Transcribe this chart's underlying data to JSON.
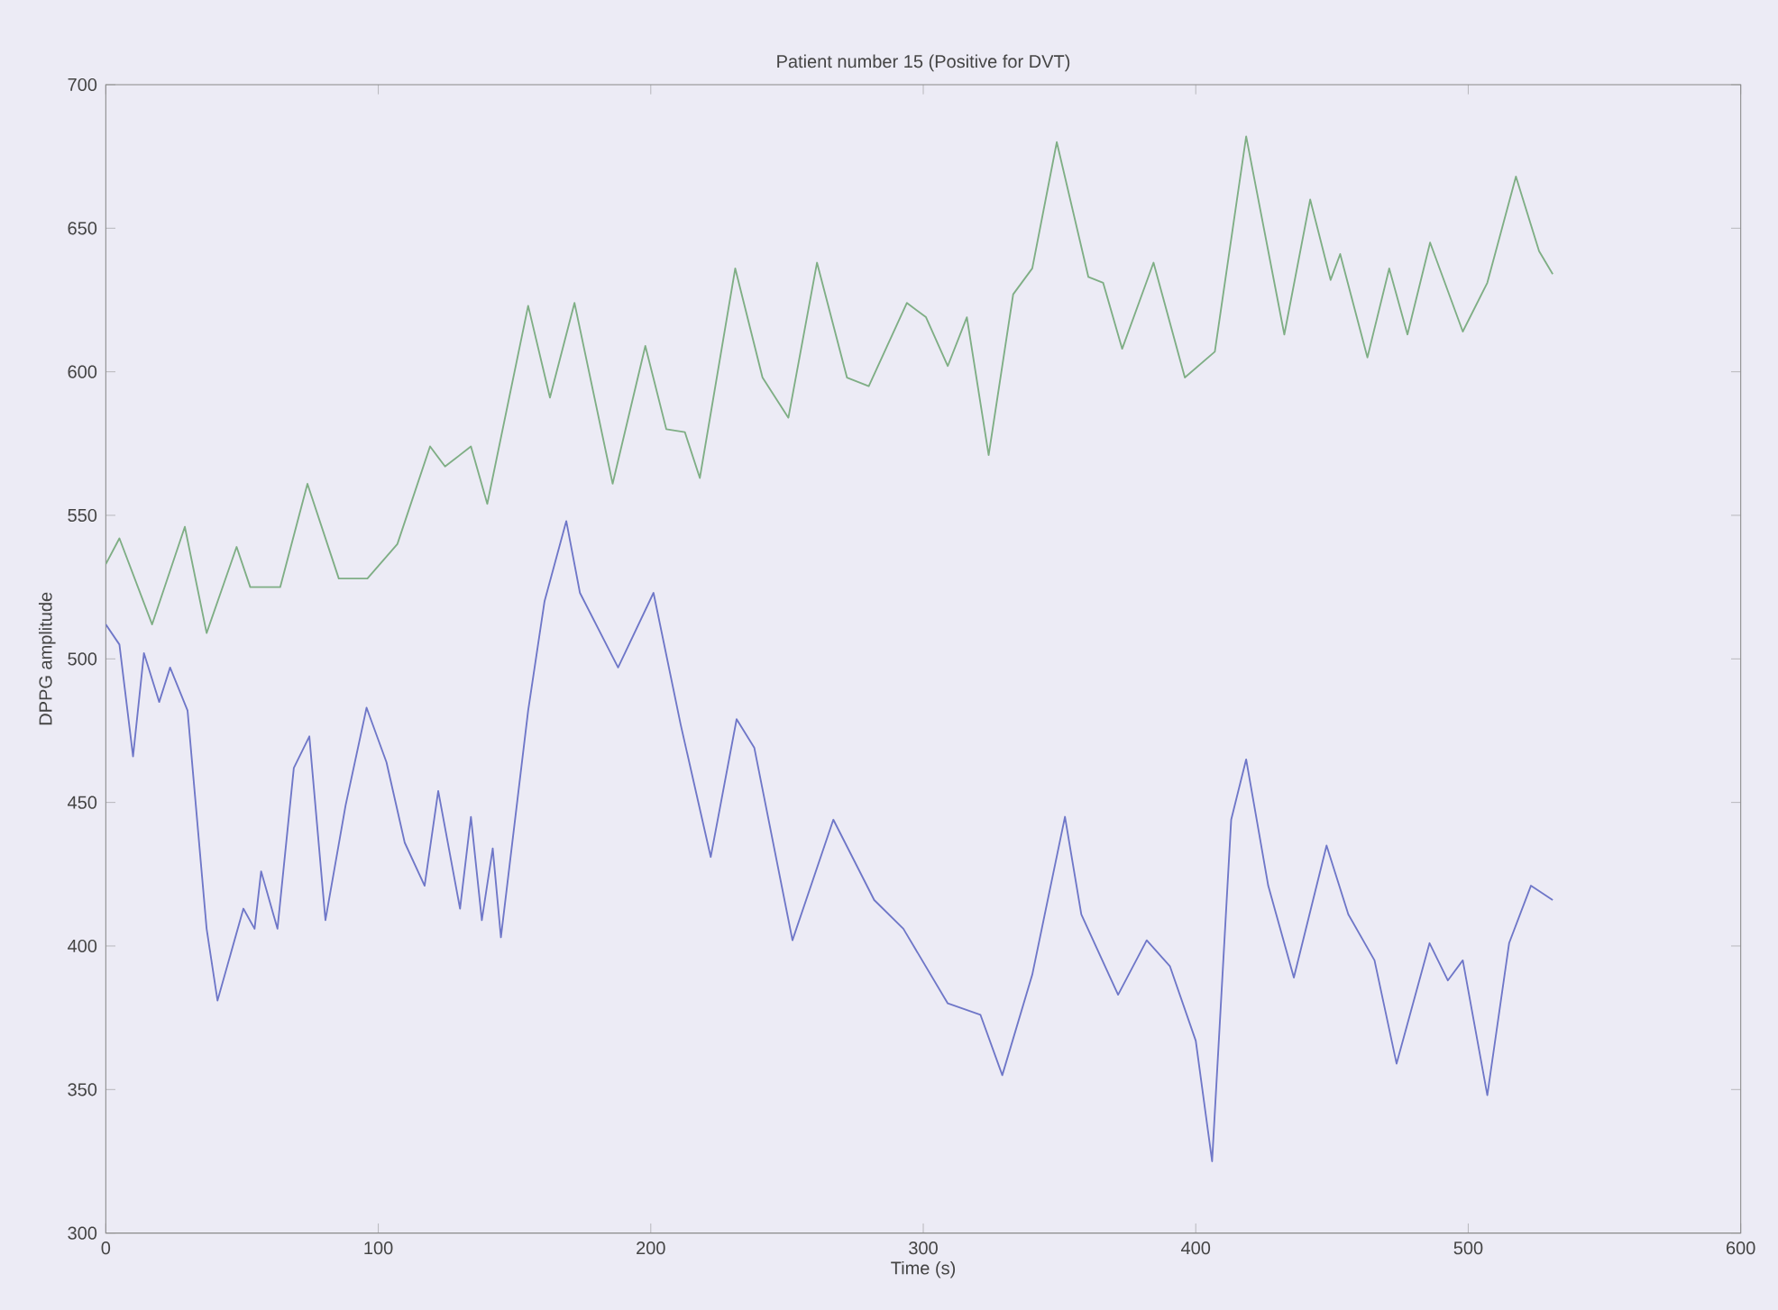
{
  "chart_data": {
    "type": "line",
    "title": "Patient number 15 (Positive for DVT)",
    "xlabel": "Time (s)",
    "ylabel": "DPPG amplitude",
    "xlim": [
      0,
      600
    ],
    "xticks": [
      0,
      100,
      200,
      300,
      400,
      500,
      600
    ],
    "ylim": [
      300,
      700
    ],
    "yticks": [
      300,
      350,
      400,
      450,
      500,
      550,
      600,
      650,
      700
    ],
    "grid": false,
    "marker": "none",
    "line_style": "solid",
    "series": [
      {
        "color": "#7fae85",
        "x": [
          0,
          5,
          17,
          29,
          37,
          48,
          53,
          64,
          74,
          85.5,
          96,
          107,
          119,
          124.5,
          134,
          140,
          155,
          163,
          172,
          186,
          198,
          205.7,
          212.5,
          218,
          231,
          241,
          250.5,
          261,
          272,
          280,
          294,
          301,
          309,
          316,
          324,
          333,
          340,
          349,
          360.6,
          366,
          373,
          384.5,
          396,
          407,
          418.5,
          432.5,
          442,
          449.5,
          453,
          463,
          471,
          477.7,
          486,
          498,
          507,
          517.5,
          526,
          531
        ],
        "values": [
          533,
          542,
          512,
          546,
          509,
          539,
          525,
          525,
          561,
          528,
          528,
          540,
          574,
          567,
          574,
          554,
          623,
          591,
          624,
          561,
          609,
          580,
          579,
          563,
          636,
          598,
          584,
          638,
          598,
          595,
          624,
          619,
          602,
          619,
          571,
          627,
          636,
          680,
          633,
          631,
          608,
          638,
          598,
          607,
          682,
          613,
          660,
          632,
          641,
          605,
          636,
          613,
          645,
          614,
          631,
          668,
          642,
          634
        ]
      },
      {
        "color": "#6f77c8",
        "x": [
          0,
          5,
          10,
          14,
          19.6,
          23.6,
          30,
          37,
          41,
          50.5,
          54.6,
          57,
          63,
          69,
          74.7,
          80.6,
          88,
          95.7,
          103,
          109.7,
          117,
          122,
          130,
          134,
          138,
          142,
          145,
          155,
          161,
          169,
          174,
          188,
          201,
          211,
          222,
          231.5,
          238,
          252,
          267,
          282,
          292.7,
          309,
          321,
          329,
          340,
          352,
          358,
          371.5,
          382,
          390.5,
          400,
          406,
          413,
          418.5,
          426.6,
          436,
          448,
          456,
          465.6,
          473.7,
          485.8,
          492.5,
          498,
          507,
          515,
          523,
          531
        ],
        "values": [
          512,
          505,
          466,
          502,
          485,
          497,
          482,
          406,
          381,
          413,
          406,
          426,
          406,
          462,
          473,
          409,
          449,
          483,
          464,
          436,
          421,
          454,
          413,
          445,
          409,
          434,
          403,
          482,
          520,
          548,
          523,
          497,
          523,
          477,
          431,
          479,
          469,
          402,
          444,
          416,
          406,
          380,
          376,
          355,
          390,
          445,
          411,
          383,
          402,
          393,
          367,
          325,
          444,
          465,
          421,
          389,
          435,
          411,
          395,
          359,
          401,
          388,
          395,
          348,
          401,
          421,
          416
        ]
      }
    ]
  }
}
